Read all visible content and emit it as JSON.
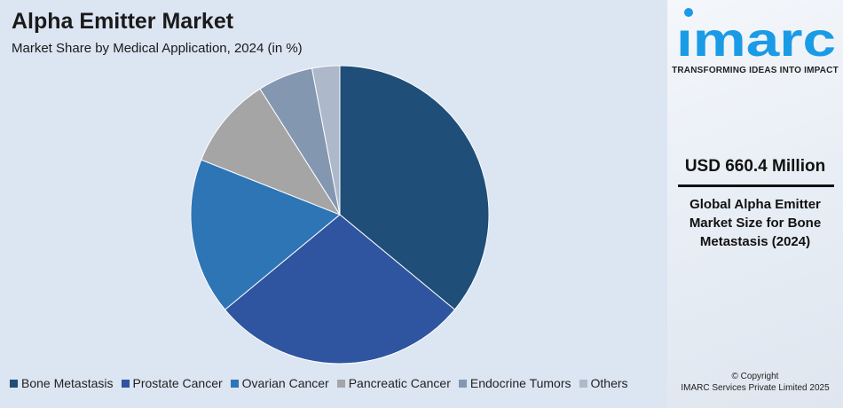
{
  "chart_data": {
    "type": "pie",
    "title": "Alpha Emitter Market",
    "subtitle": "Market Share by Medical Application, 2024 (in %)",
    "categories": [
      "Bone Metastasis",
      "Prostate Cancer",
      "Ovarian Cancer",
      "Pancreatic Cancer",
      "Endocrine Tumors",
      "Others"
    ],
    "values": [
      36,
      28,
      17,
      10,
      6,
      3
    ],
    "colors": [
      "#1f4e79",
      "#2f55a0",
      "#2e75b6",
      "#a5a5a5",
      "#8497b0",
      "#adb9ca"
    ],
    "legend_position": "bottom"
  },
  "sidebar": {
    "logo_text": "imarc",
    "tagline": "TRANSFORMING IDEAS INTO IMPACT",
    "value": "USD 660.4 Million",
    "description": "Global Alpha Emitter Market Size for Bone Metastasis (2024)",
    "copyright_line1": "© Copyright",
    "copyright_line2": "IMARC Services Private Limited 2025",
    "brand_color": "#1a9be6"
  }
}
